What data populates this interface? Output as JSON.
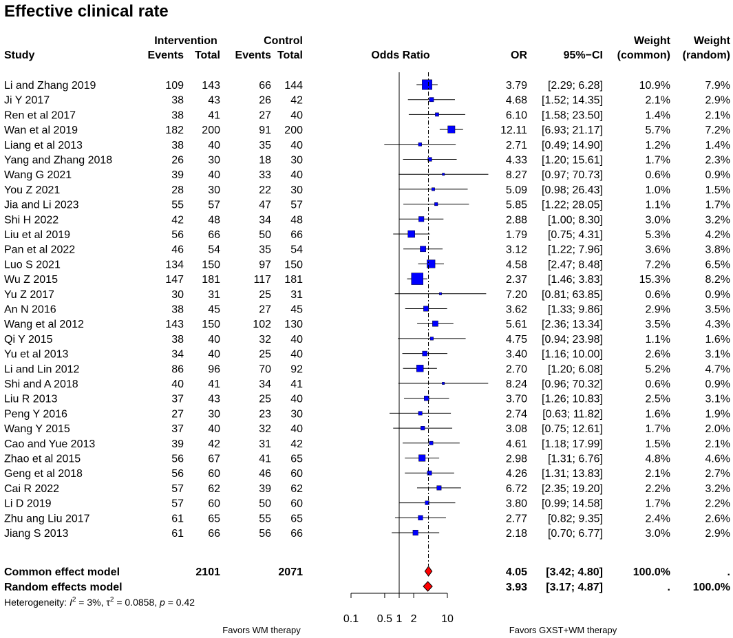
{
  "chart_data": {
    "type": "forest",
    "title": "Effective clinical rate",
    "header": {
      "group_intervention": "Intervention",
      "group_control": "Control",
      "study": "Study",
      "events": "Events",
      "total": "Total",
      "odds_ratio": "Odds Ratio",
      "or": "OR",
      "ci": "95%−CI",
      "weight": "Weight",
      "common": "(common)",
      "random": "(random)"
    },
    "studies": [
      {
        "study": "Li and Zhang 2019",
        "e_int": "109",
        "t_int": "143",
        "e_ctl": "66",
        "t_ctl": "144",
        "or": 3.79,
        "lo": 2.29,
        "hi": 6.28,
        "or_text": "3.79",
        "ci_text": "[2.29; 6.28]",
        "w_common": 10.9,
        "w_common_text": "10.9%",
        "w_random_text": "7.9%"
      },
      {
        "study": "Ji Y 2017",
        "e_int": "38",
        "t_int": "43",
        "e_ctl": "26",
        "t_ctl": "42",
        "or": 4.68,
        "lo": 1.52,
        "hi": 14.35,
        "or_text": "4.68",
        "ci_text": "[1.52; 14.35]",
        "w_common": 2.1,
        "w_common_text": "2.1%",
        "w_random_text": "2.9%"
      },
      {
        "study": "Ren et al 2017",
        "e_int": "38",
        "t_int": "41",
        "e_ctl": "27",
        "t_ctl": "40",
        "or": 6.1,
        "lo": 1.58,
        "hi": 23.5,
        "or_text": "6.10",
        "ci_text": "[1.58; 23.50]",
        "w_common": 1.4,
        "w_common_text": "1.4%",
        "w_random_text": "2.1%"
      },
      {
        "study": "Wan et al 2019",
        "e_int": "182",
        "t_int": "200",
        "e_ctl": "91",
        "t_ctl": "200",
        "or": 12.11,
        "lo": 6.93,
        "hi": 21.17,
        "or_text": "12.11",
        "ci_text": "[6.93; 21.17]",
        "w_common": 5.7,
        "w_common_text": "5.7%",
        "w_random_text": "7.2%"
      },
      {
        "study": "Liang et al 2013",
        "e_int": "38",
        "t_int": "40",
        "e_ctl": "35",
        "t_ctl": "40",
        "or": 2.71,
        "lo": 0.49,
        "hi": 14.9,
        "or_text": "2.71",
        "ci_text": "[0.49; 14.90]",
        "w_common": 1.2,
        "w_common_text": "1.2%",
        "w_random_text": "1.4%"
      },
      {
        "study": "Yang and Zhang 2018",
        "e_int": "26",
        "t_int": "30",
        "e_ctl": "18",
        "t_ctl": "30",
        "or": 4.33,
        "lo": 1.2,
        "hi": 15.61,
        "or_text": "4.33",
        "ci_text": "[1.20; 15.61]",
        "w_common": 1.7,
        "w_common_text": "1.7%",
        "w_random_text": "2.3%"
      },
      {
        "study": "Wang G 2021",
        "e_int": "39",
        "t_int": "40",
        "e_ctl": "33",
        "t_ctl": "40",
        "or": 8.27,
        "lo": 0.97,
        "hi": 70.73,
        "or_text": "8.27",
        "ci_text": "[0.97; 70.73]",
        "w_common": 0.6,
        "w_common_text": "0.6%",
        "w_random_text": "0.9%"
      },
      {
        "study": "You Z 2021",
        "e_int": "28",
        "t_int": "30",
        "e_ctl": "22",
        "t_ctl": "30",
        "or": 5.09,
        "lo": 0.98,
        "hi": 26.43,
        "or_text": "5.09",
        "ci_text": "[0.98; 26.43]",
        "w_common": 1.0,
        "w_common_text": "1.0%",
        "w_random_text": "1.5%"
      },
      {
        "study": "Jia and Li 2023",
        "e_int": "55",
        "t_int": "57",
        "e_ctl": "47",
        "t_ctl": "57",
        "or": 5.85,
        "lo": 1.22,
        "hi": 28.05,
        "or_text": "5.85",
        "ci_text": "[1.22; 28.05]",
        "w_common": 1.1,
        "w_common_text": "1.1%",
        "w_random_text": "1.7%"
      },
      {
        "study": "Shi H 2022",
        "e_int": "42",
        "t_int": "48",
        "e_ctl": "34",
        "t_ctl": "48",
        "or": 2.88,
        "lo": 1.0,
        "hi": 8.3,
        "or_text": "2.88",
        "ci_text": "[1.00; 8.30]",
        "w_common": 3.0,
        "w_common_text": "3.0%",
        "w_random_text": "3.2%"
      },
      {
        "study": "Liu et al 2019",
        "e_int": "56",
        "t_int": "66",
        "e_ctl": "50",
        "t_ctl": "66",
        "or": 1.79,
        "lo": 0.75,
        "hi": 4.31,
        "or_text": "1.79",
        "ci_text": "[0.75; 4.31]",
        "w_common": 5.3,
        "w_common_text": "5.3%",
        "w_random_text": "4.2%"
      },
      {
        "study": "Pan et al 2022",
        "e_int": "46",
        "t_int": "54",
        "e_ctl": "35",
        "t_ctl": "54",
        "or": 3.12,
        "lo": 1.22,
        "hi": 7.96,
        "or_text": "3.12",
        "ci_text": "[1.22; 7.96]",
        "w_common": 3.6,
        "w_common_text": "3.6%",
        "w_random_text": "3.8%"
      },
      {
        "study": "Luo S 2021",
        "e_int": "134",
        "t_int": "150",
        "e_ctl": "97",
        "t_ctl": "150",
        "or": 4.58,
        "lo": 2.47,
        "hi": 8.48,
        "or_text": "4.58",
        "ci_text": "[2.47; 8.48]",
        "w_common": 7.2,
        "w_common_text": "7.2%",
        "w_random_text": "6.5%"
      },
      {
        "study": "Wu Z 2015",
        "e_int": "147",
        "t_int": "181",
        "e_ctl": "117",
        "t_ctl": "181",
        "or": 2.37,
        "lo": 1.46,
        "hi": 3.83,
        "or_text": "2.37",
        "ci_text": "[1.46; 3.83]",
        "w_common": 15.3,
        "w_common_text": "15.3%",
        "w_random_text": "8.2%"
      },
      {
        "study": "Yu Z 2017",
        "e_int": "30",
        "t_int": "31",
        "e_ctl": "25",
        "t_ctl": "31",
        "or": 7.2,
        "lo": 0.81,
        "hi": 63.85,
        "or_text": "7.20",
        "ci_text": "[0.81; 63.85]",
        "w_common": 0.6,
        "w_common_text": "0.6%",
        "w_random_text": "0.9%"
      },
      {
        "study": "An N 2016",
        "e_int": "38",
        "t_int": "45",
        "e_ctl": "27",
        "t_ctl": "45",
        "or": 3.62,
        "lo": 1.33,
        "hi": 9.86,
        "or_text": "3.62",
        "ci_text": "[1.33; 9.86]",
        "w_common": 2.9,
        "w_common_text": "2.9%",
        "w_random_text": "3.5%"
      },
      {
        "study": "Wang et al 2012",
        "e_int": "143",
        "t_int": "150",
        "e_ctl": "102",
        "t_ctl": "130",
        "or": 5.61,
        "lo": 2.36,
        "hi": 13.34,
        "or_text": "5.61",
        "ci_text": "[2.36; 13.34]",
        "w_common": 3.5,
        "w_common_text": "3.5%",
        "w_random_text": "4.3%"
      },
      {
        "study": "Qi Y 2015",
        "e_int": "38",
        "t_int": "40",
        "e_ctl": "32",
        "t_ctl": "40",
        "or": 4.75,
        "lo": 0.94,
        "hi": 23.98,
        "or_text": "4.75",
        "ci_text": "[0.94; 23.98]",
        "w_common": 1.1,
        "w_common_text": "1.1%",
        "w_random_text": "1.6%"
      },
      {
        "study": "Yu et al 2013",
        "e_int": "34",
        "t_int": "40",
        "e_ctl": "25",
        "t_ctl": "40",
        "or": 3.4,
        "lo": 1.16,
        "hi": 10.0,
        "or_text": "3.40",
        "ci_text": "[1.16; 10.00]",
        "w_common": 2.6,
        "w_common_text": "2.6%",
        "w_random_text": "3.1%"
      },
      {
        "study": "Li and Lin 2012",
        "e_int": "86",
        "t_int": "96",
        "e_ctl": "70",
        "t_ctl": "92",
        "or": 2.7,
        "lo": 1.2,
        "hi": 6.08,
        "or_text": "2.70",
        "ci_text": "[1.20; 6.08]",
        "w_common": 5.2,
        "w_common_text": "5.2%",
        "w_random_text": "4.7%"
      },
      {
        "study": "Shi and A 2018",
        "e_int": "40",
        "t_int": "41",
        "e_ctl": "34",
        "t_ctl": "41",
        "or": 8.24,
        "lo": 0.96,
        "hi": 70.32,
        "or_text": "8.24",
        "ci_text": "[0.96; 70.32]",
        "w_common": 0.6,
        "w_common_text": "0.6%",
        "w_random_text": "0.9%"
      },
      {
        "study": "Liu R 2013",
        "e_int": "37",
        "t_int": "43",
        "e_ctl": "25",
        "t_ctl": "40",
        "or": 3.7,
        "lo": 1.26,
        "hi": 10.83,
        "or_text": "3.70",
        "ci_text": "[1.26; 10.83]",
        "w_common": 2.5,
        "w_common_text": "2.5%",
        "w_random_text": "3.1%"
      },
      {
        "study": "Peng Y 2016",
        "e_int": "27",
        "t_int": "30",
        "e_ctl": "23",
        "t_ctl": "30",
        "or": 2.74,
        "lo": 0.63,
        "hi": 11.82,
        "or_text": "2.74",
        "ci_text": "[0.63; 11.82]",
        "w_common": 1.6,
        "w_common_text": "1.6%",
        "w_random_text": "1.9%"
      },
      {
        "study": "Wang Y 2015",
        "e_int": "37",
        "t_int": "40",
        "e_ctl": "32",
        "t_ctl": "40",
        "or": 3.08,
        "lo": 0.75,
        "hi": 12.61,
        "or_text": "3.08",
        "ci_text": "[0.75; 12.61]",
        "w_common": 1.7,
        "w_common_text": "1.7%",
        "w_random_text": "2.0%"
      },
      {
        "study": "Cao and Yue 2013",
        "e_int": "39",
        "t_int": "42",
        "e_ctl": "31",
        "t_ctl": "42",
        "or": 4.61,
        "lo": 1.18,
        "hi": 17.99,
        "or_text": "4.61",
        "ci_text": "[1.18; 17.99]",
        "w_common": 1.5,
        "w_common_text": "1.5%",
        "w_random_text": "2.1%"
      },
      {
        "study": "Zhao et al 2015",
        "e_int": "56",
        "t_int": "67",
        "e_ctl": "41",
        "t_ctl": "65",
        "or": 2.98,
        "lo": 1.31,
        "hi": 6.76,
        "or_text": "2.98",
        "ci_text": "[1.31; 6.76]",
        "w_common": 4.8,
        "w_common_text": "4.8%",
        "w_random_text": "4.6%"
      },
      {
        "study": "Geng et al 2018",
        "e_int": "56",
        "t_int": "60",
        "e_ctl": "46",
        "t_ctl": "60",
        "or": 4.26,
        "lo": 1.31,
        "hi": 13.83,
        "or_text": "4.26",
        "ci_text": "[1.31; 13.83]",
        "w_common": 2.1,
        "w_common_text": "2.1%",
        "w_random_text": "2.7%"
      },
      {
        "study": "Cai R 2022",
        "e_int": "57",
        "t_int": "62",
        "e_ctl": "39",
        "t_ctl": "62",
        "or": 6.72,
        "lo": 2.35,
        "hi": 19.2,
        "or_text": "6.72",
        "ci_text": "[2.35; 19.20]",
        "w_common": 2.2,
        "w_common_text": "2.2%",
        "w_random_text": "3.2%"
      },
      {
        "study": "Li D 2019",
        "e_int": "57",
        "t_int": "60",
        "e_ctl": "50",
        "t_ctl": "60",
        "or": 3.8,
        "lo": 0.99,
        "hi": 14.58,
        "or_text": "3.80",
        "ci_text": "[0.99; 14.58]",
        "w_common": 1.7,
        "w_common_text": "1.7%",
        "w_random_text": "2.2%"
      },
      {
        "study": "Zhu ang Liu 2017",
        "e_int": "61",
        "t_int": "65",
        "e_ctl": "55",
        "t_ctl": "65",
        "or": 2.77,
        "lo": 0.82,
        "hi": 9.35,
        "or_text": "2.77",
        "ci_text": "[0.82; 9.35]",
        "w_common": 2.4,
        "w_common_text": "2.4%",
        "w_random_text": "2.6%"
      },
      {
        "study": "Jiang S 2013",
        "e_int": "61",
        "t_int": "66",
        "e_ctl": "56",
        "t_ctl": "66",
        "or": 2.18,
        "lo": 0.7,
        "hi": 6.77,
        "or_text": "2.18",
        "ci_text": "[0.70; 6.77]",
        "w_common": 3.0,
        "w_common_text": "3.0%",
        "w_random_text": "2.9%"
      }
    ],
    "summaries": [
      {
        "label": "Common effect model",
        "t_int": "2101",
        "t_ctl": "2071",
        "or": 4.05,
        "lo": 3.42,
        "hi": 4.8,
        "or_text": "4.05",
        "ci_text": "[3.42; 4.80]",
        "w_common_text": "100.0%",
        "w_random_text": "."
      },
      {
        "label": "Random effects model",
        "t_int": "",
        "t_ctl": "",
        "or": 3.93,
        "lo": 3.17,
        "hi": 4.87,
        "or_text": "3.93",
        "ci_text": "[3.17; 4.87]",
        "w_common_text": ".",
        "w_random_text": "100.0%"
      }
    ],
    "heterogeneity": {
      "prefix": "Heterogeneity: ",
      "i_sym": "I",
      "i_exp": "2",
      "i_val": " = 3%, ",
      "tau_sym": "τ",
      "tau_exp": "2",
      "tau_val": " = 0.0858, ",
      "p_sym": "p",
      "p_val": " = 0.42"
    },
    "x_axis": {
      "scale": "log",
      "ticks": [
        0.1,
        0.5,
        1,
        2,
        10
      ],
      "tick_labels": [
        "0.1",
        "0.5",
        "1",
        "2",
        "10"
      ],
      "range": [
        0.1,
        10
      ]
    },
    "favors_left": "Favors WM therapy",
    "favors_right": "Favors GXST+WM therapy",
    "colors": {
      "square": "#0000ff",
      "diamond": "#ff0000",
      "line": "#000000"
    }
  }
}
